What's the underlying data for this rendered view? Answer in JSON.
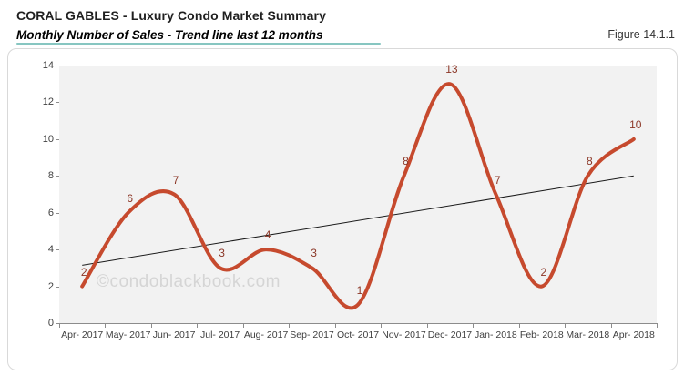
{
  "page": {
    "title": "CORAL GABLES - Luxury Condo Market Summary",
    "subtitle": "Monthly Number of Sales - Trend line last 12 months",
    "figure_label": "Figure 14.1.1",
    "watermark": "©condoblackbook.com"
  },
  "colors": {
    "series_line": "#c64a2e",
    "data_label": "#8b3626",
    "trend_line": "#1a1a1a",
    "plot_bg": "#f2f2f2",
    "axis": "#8c8c8c",
    "tick_label": "#404040",
    "frame_border": "#d9d9d9",
    "accent_rule": "#5fb3ac",
    "watermark": "#d5d5d5"
  },
  "chart_data": {
    "type": "line",
    "title": "Monthly Number of Sales - Trend line last 12 months",
    "categories": [
      "Apr- 2017",
      "May- 2017",
      "Jun- 2017",
      "Jul- 2017",
      "Aug- 2017",
      "Sep- 2017",
      "Oct- 2017",
      "Nov- 2017",
      "Dec- 2017",
      "Jan- 2018",
      "Feb- 2018",
      "Mar- 2018",
      "Apr- 2018"
    ],
    "series": [
      {
        "name": "Number of Sales",
        "type": "smooth-line",
        "values": [
          2,
          6,
          7,
          3,
          4,
          3,
          1,
          8,
          13,
          7,
          2,
          8,
          10
        ],
        "data_labels": true
      },
      {
        "name": "Trend line",
        "type": "linear-trend",
        "start_value": 3.15,
        "end_value": 8.0
      }
    ],
    "xlabel": "",
    "ylabel": "",
    "ylim": [
      0,
      14
    ],
    "ytick_step": 2,
    "grid": false,
    "legend": "none",
    "plot_background": "#f2f2f2"
  }
}
